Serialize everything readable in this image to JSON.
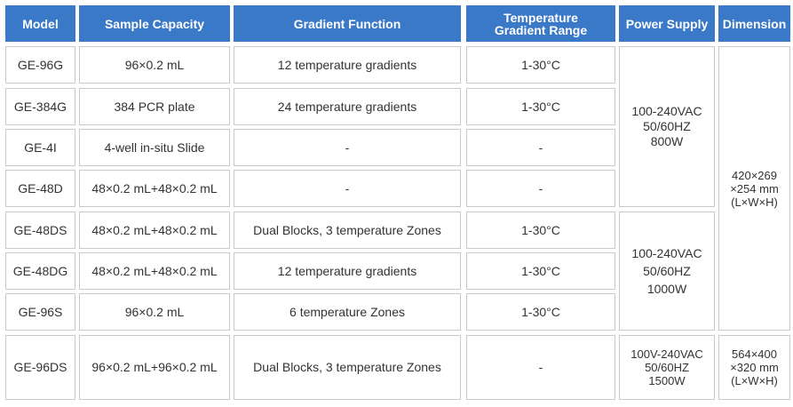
{
  "headers": {
    "model": "Model",
    "capacity": "Sample Capacity",
    "gradient": "Gradient Function",
    "range": "Temperature\nGradient Range",
    "power": "Power Supply",
    "dimension": "Dimension"
  },
  "rows": [
    {
      "model": "GE-96G",
      "capacity": "96×0.2 mL",
      "gradient": "12 temperature gradients",
      "range": "1-30°C"
    },
    {
      "model": "GE-384G",
      "capacity": "384 PCR plate",
      "gradient": "24 temperature gradients",
      "range": "1-30°C"
    },
    {
      "model": "GE-4I",
      "capacity": "4-well in-situ Slide",
      "gradient": "-",
      "range": "-"
    },
    {
      "model": "GE-48D",
      "capacity": "48×0.2 mL+48×0.2 mL",
      "gradient": "-",
      "range": "-"
    },
    {
      "model": "GE-48DS",
      "capacity": "48×0.2 mL+48×0.2 mL",
      "gradient": "Dual Blocks, 3 temperature  Zones",
      "range": "1-30°C"
    },
    {
      "model": "GE-48DG",
      "capacity": "48×0.2 mL+48×0.2 mL",
      "gradient": "12 temperature gradients",
      "range": "1-30°C"
    },
    {
      "model": "GE-96S",
      "capacity": "96×0.2 mL",
      "gradient": "6 temperature  Zones",
      "range": "1-30°C"
    },
    {
      "model": "GE-96DS",
      "capacity": "96×0.2 mL+96×0.2 mL",
      "gradient": "Dual Blocks, 3 temperature  Zones",
      "range": "-"
    }
  ],
  "power_groups": [
    "100-240VAC\n50/60HZ\n800W",
    "100-240VAC\n50/60HZ\n1000W",
    "100V-240VAC\n50/60HZ\n1500W"
  ],
  "dimension_groups": [
    "420×269\n×254 mm\n(L×W×H)",
    "564×400\n×320 mm\n(L×W×H)"
  ],
  "colors": {
    "header_bg": "#3a78c8",
    "header_text": "#ffffff",
    "border": "#c9c9c9",
    "text": "#333333"
  }
}
